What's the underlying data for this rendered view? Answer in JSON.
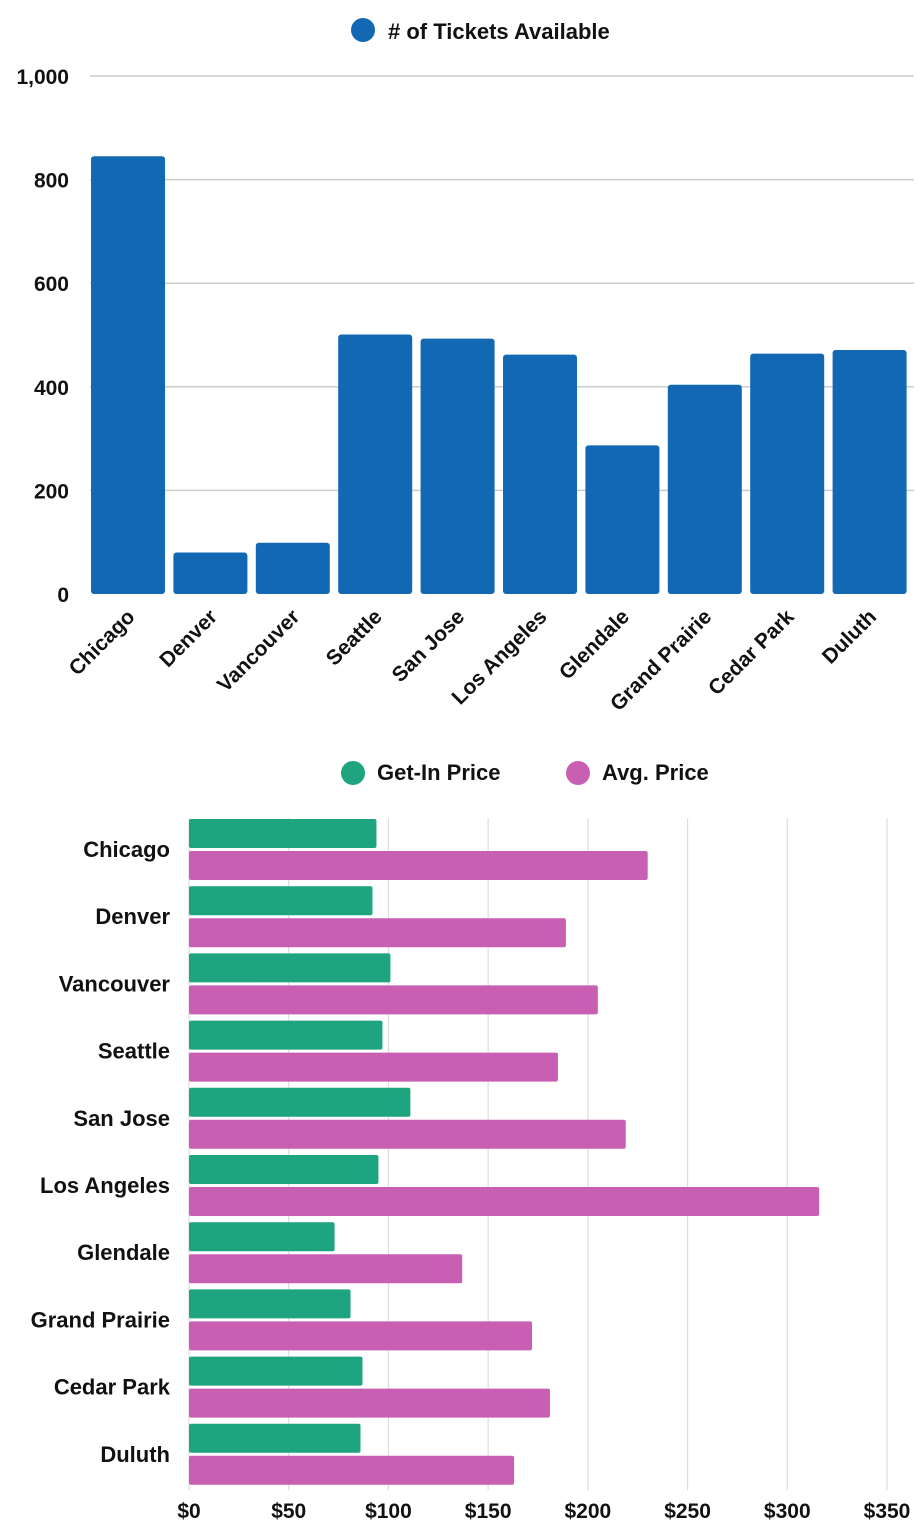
{
  "chart_data": [
    {
      "type": "bar",
      "title": "",
      "legend": [
        "# of Tickets Available"
      ],
      "categories": [
        "Chicago",
        "Denver",
        "Vancouver",
        "Seattle",
        "San Jose",
        "Los Angeles",
        "Glendale",
        "Grand Prairie",
        "Cedar Park",
        "Duluth"
      ],
      "series": [
        {
          "name": "# of Tickets Available",
          "values": [
            845,
            80,
            99,
            501,
            493,
            462,
            287,
            404,
            464,
            471
          ]
        }
      ],
      "yticks": [
        "0",
        "200",
        "400",
        "600",
        "800",
        "1,000"
      ],
      "ylim": [
        0,
        1000
      ],
      "grid": true,
      "legend_position": "top",
      "colors": {
        "tickets": "#1268b3"
      }
    },
    {
      "type": "bar",
      "orientation": "horizontal",
      "title": "",
      "legend": [
        "Get-In Price",
        "Avg. Price"
      ],
      "categories": [
        "Chicago",
        "Denver",
        "Vancouver",
        "Seattle",
        "San Jose",
        "Los Angeles",
        "Glendale",
        "Grand Prairie",
        "Cedar Park",
        "Duluth"
      ],
      "series": [
        {
          "name": "Get-In Price",
          "values": [
            94,
            92,
            101,
            97,
            111,
            95,
            73,
            81,
            87,
            86
          ]
        },
        {
          "name": "Avg. Price",
          "values": [
            230,
            189,
            205,
            185,
            219,
            316,
            137,
            172,
            181,
            163
          ]
        }
      ],
      "xticks": [
        "$0",
        "$50",
        "$100",
        "$150",
        "$200",
        "$250",
        "$300",
        "$350"
      ],
      "xlim": [
        0,
        350
      ],
      "grid": true,
      "legend_position": "top",
      "colors": {
        "get_in": "#1ea47e",
        "avg": "#c95fb3"
      }
    }
  ]
}
